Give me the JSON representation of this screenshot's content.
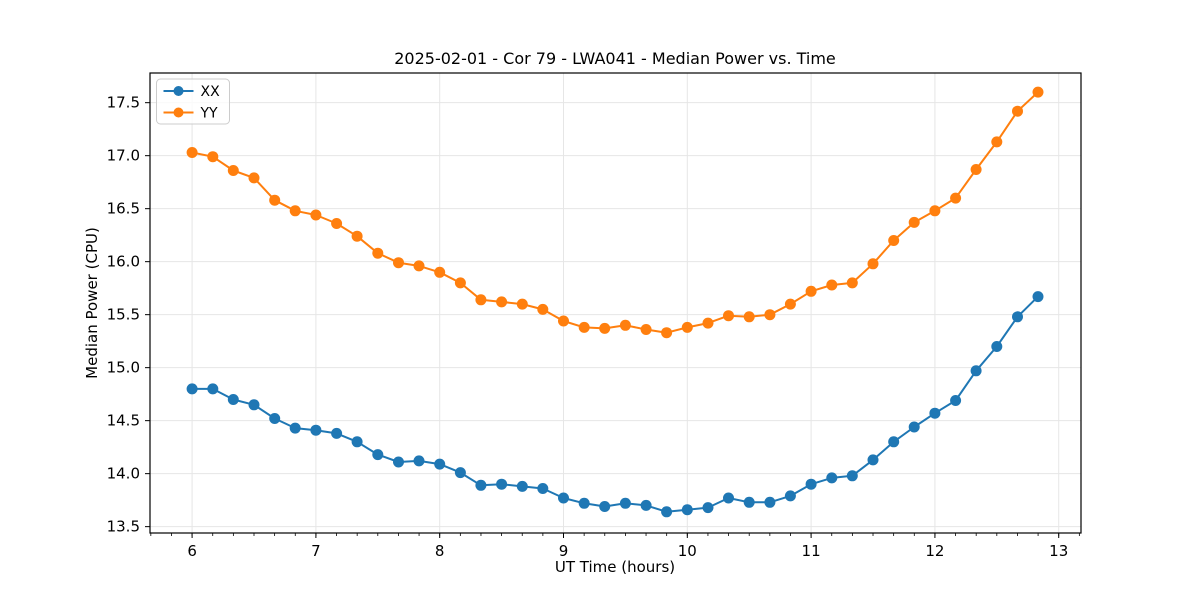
{
  "chart_data": {
    "type": "line",
    "title": "2025-02-01 - Cor 79 - LWA041 - Median Power vs. Time",
    "xlabel": "UT Time (hours)",
    "ylabel": "Median Power (CPU)",
    "xlim": [
      5.66,
      13.18
    ],
    "ylim": [
      13.44,
      17.78
    ],
    "xticks": [
      6,
      7,
      8,
      9,
      10,
      11,
      12,
      13
    ],
    "yticks": [
      13.5,
      14.0,
      14.5,
      15.0,
      15.5,
      16.0,
      16.5,
      17.0,
      17.5
    ],
    "x_minor_tick_step": 0.166667,
    "grid": true,
    "legend_position": "upper left",
    "grid_color": "#e6e6e6",
    "spine_color": "#000000",
    "x": [
      6.0,
      6.167,
      6.333,
      6.5,
      6.667,
      6.833,
      7.0,
      7.167,
      7.333,
      7.5,
      7.667,
      7.833,
      8.0,
      8.167,
      8.333,
      8.5,
      8.667,
      8.833,
      9.0,
      9.167,
      9.333,
      9.5,
      9.667,
      9.833,
      10.0,
      10.167,
      10.333,
      10.5,
      10.667,
      10.833,
      11.0,
      11.167,
      11.333,
      11.5,
      11.667,
      11.833,
      12.0,
      12.167,
      12.333,
      12.5,
      12.667,
      12.833
    ],
    "series": [
      {
        "name": "XX",
        "color": "#1f77b4",
        "values": [
          14.8,
          14.8,
          14.7,
          14.65,
          14.52,
          14.43,
          14.41,
          14.38,
          14.3,
          14.18,
          14.11,
          14.12,
          14.09,
          14.01,
          13.89,
          13.9,
          13.88,
          13.86,
          13.77,
          13.72,
          13.69,
          13.72,
          13.7,
          13.64,
          13.66,
          13.68,
          13.77,
          13.73,
          13.73,
          13.79,
          13.9,
          13.96,
          13.98,
          14.13,
          14.3,
          14.44,
          14.57,
          14.69,
          14.97,
          15.2,
          15.48,
          15.67
        ]
      },
      {
        "name": "YY",
        "color": "#ff7f0e",
        "values": [
          17.03,
          16.99,
          16.86,
          16.79,
          16.58,
          16.48,
          16.44,
          16.36,
          16.24,
          16.08,
          15.99,
          15.96,
          15.9,
          15.8,
          15.64,
          15.62,
          15.6,
          15.55,
          15.44,
          15.38,
          15.37,
          15.4,
          15.36,
          15.33,
          15.38,
          15.42,
          15.49,
          15.48,
          15.5,
          15.6,
          15.72,
          15.78,
          15.8,
          15.98,
          16.2,
          16.37,
          16.48,
          16.6,
          16.87,
          17.13,
          17.42,
          17.6
        ]
      }
    ]
  }
}
